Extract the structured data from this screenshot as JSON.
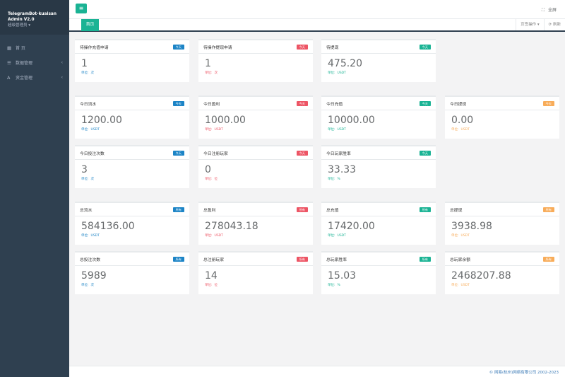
{
  "sidebar": {
    "brand_line1": "TelegramBot-kuaisan",
    "brand_line2": "Admin V2.0",
    "role": "超级管理员 ▾",
    "items": [
      {
        "label": "首 页",
        "icon": "grid-icon",
        "glyph": "▦",
        "arrow": ""
      },
      {
        "label": "数据管理",
        "icon": "list-icon",
        "glyph": "☰",
        "arrow": "‹"
      },
      {
        "label": "资金管理",
        "icon": "font-icon",
        "glyph": "A",
        "arrow": "‹"
      }
    ]
  },
  "topbar": {
    "menu_glyph": "≡",
    "fullscreen_glyph": "⛶",
    "fullscreen_label": "全屏"
  },
  "tabs": {
    "home_label": "首页",
    "ops_label": "页签操作 ▾",
    "refresh_label": "⟳ 刷新"
  },
  "cards": [
    {
      "title": "待操作充值申请",
      "badge": "今天",
      "value": "1",
      "unit_label": "单位:",
      "unit": "次",
      "color": "#1c84c6"
    },
    {
      "title": "待操作提现申请",
      "badge": "今天",
      "value": "1",
      "unit_label": "单位:",
      "unit": "次",
      "color": "#ed5565"
    },
    {
      "title": "待提现",
      "badge": "今天",
      "value": "475.20",
      "unit_label": "单位:",
      "unit": "USDT",
      "color": "#1ab394"
    },
    {
      "title": "今日流水",
      "badge": "今天",
      "value": "1200.00",
      "unit_label": "单位:",
      "unit": "USDT",
      "color": "#1c84c6"
    },
    {
      "title": "今日盈利",
      "badge": "今天",
      "value": "1000.00",
      "unit_label": "单位:",
      "unit": "USDT",
      "color": "#ed5565"
    },
    {
      "title": "今日充值",
      "badge": "今天",
      "value": "10000.00",
      "unit_label": "单位:",
      "unit": "USDT",
      "color": "#1ab394"
    },
    {
      "title": "今日提现",
      "badge": "今天",
      "value": "0.00",
      "unit_label": "单位:",
      "unit": "USDT",
      "color": "#f8ac59"
    },
    {
      "title": "今日投注次数",
      "badge": "今天",
      "value": "3",
      "unit_label": "单位:",
      "unit": "次",
      "color": "#1c84c6"
    },
    {
      "title": "今日注册玩家",
      "badge": "今天",
      "value": "0",
      "unit_label": "单位:",
      "unit": "位",
      "color": "#ed5565"
    },
    {
      "title": "今日玩家胜率",
      "badge": "今天",
      "value": "33.33",
      "unit_label": "单位:",
      "unit": "%",
      "color": "#1ab394"
    },
    {
      "title": "总流水",
      "badge": "所有",
      "value": "584136.00",
      "unit_label": "单位:",
      "unit": "USDT",
      "color": "#1c84c6"
    },
    {
      "title": "总盈利",
      "badge": "所有",
      "value": "278043.18",
      "unit_label": "单位:",
      "unit": "USDT",
      "color": "#ed5565"
    },
    {
      "title": "总充值",
      "badge": "所有",
      "value": "17420.00",
      "unit_label": "单位:",
      "unit": "USDT",
      "color": "#1ab394"
    },
    {
      "title": "总提现",
      "badge": "所有",
      "value": "3938.98",
      "unit_label": "单位:",
      "unit": "USDT",
      "color": "#f8ac59"
    },
    {
      "title": "总投注次数",
      "badge": "所有",
      "value": "5989",
      "unit_label": "单位:",
      "unit": "次",
      "color": "#1c84c6"
    },
    {
      "title": "总注册玩家",
      "badge": "所有",
      "value": "14",
      "unit_label": "单位:",
      "unit": "位",
      "color": "#ed5565"
    },
    {
      "title": "总玩家胜率",
      "badge": "所有",
      "value": "15.03",
      "unit_label": "单位:",
      "unit": "%",
      "color": "#1ab394"
    },
    {
      "title": "总玩家余额",
      "badge": "所有",
      "value": "2468207.88",
      "unit_label": "单位:",
      "unit": "USDT",
      "color": "#f8ac59"
    }
  ],
  "footer": {
    "copyright": "© 网易(杭州)网络有限公司 2002-2023"
  }
}
